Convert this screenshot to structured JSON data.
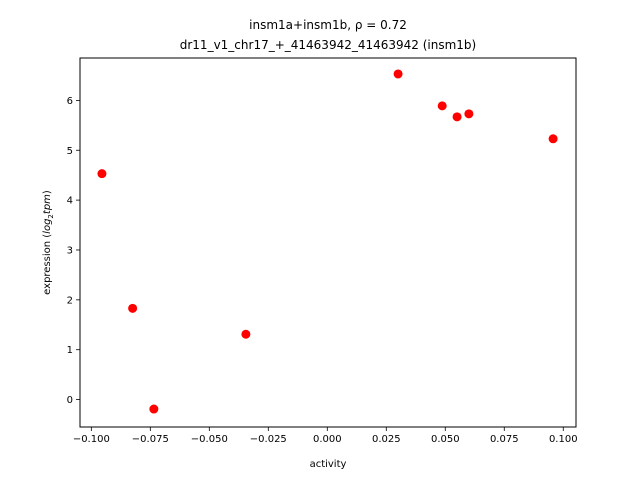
{
  "chart_data": {
    "type": "scatter",
    "title_line1": "insm1a+insm1b, ρ = 0.72",
    "title_line2": "dr11_v1_chr17_+_41463942_41463942 (insm1b)",
    "xlabel": "activity",
    "ylabel_prefix": "expression (",
    "ylabel_math": "log",
    "ylabel_sub": "2",
    "ylabel_math2": "tpm",
    "ylabel_suffix": ")",
    "xlim": [
      -0.1048,
      0.1054
    ],
    "ylim": [
      -0.55,
      6.85
    ],
    "x_ticks": [
      -0.1,
      -0.075,
      -0.05,
      -0.025,
      0.0,
      0.025,
      0.05,
      0.075,
      0.1
    ],
    "x_tick_labels": [
      "−0.100",
      "−0.075",
      "−0.050",
      "−0.025",
      "0.000",
      "0.025",
      "0.050",
      "0.075",
      "0.100"
    ],
    "y_ticks": [
      0,
      1,
      2,
      3,
      4,
      5,
      6
    ],
    "y_tick_labels": [
      "0",
      "1",
      "2",
      "3",
      "4",
      "5",
      "6"
    ],
    "grid": false,
    "marker_color": "#ff0000",
    "points": [
      {
        "x": -0.0955,
        "y": 4.53
      },
      {
        "x": -0.0825,
        "y": 1.83
      },
      {
        "x": -0.0735,
        "y": -0.19
      },
      {
        "x": -0.0345,
        "y": 1.31
      },
      {
        "x": 0.03,
        "y": 6.53
      },
      {
        "x": 0.0487,
        "y": 5.89
      },
      {
        "x": 0.055,
        "y": 5.67
      },
      {
        "x": 0.06,
        "y": 5.73
      },
      {
        "x": 0.0957,
        "y": 5.23
      }
    ]
  }
}
